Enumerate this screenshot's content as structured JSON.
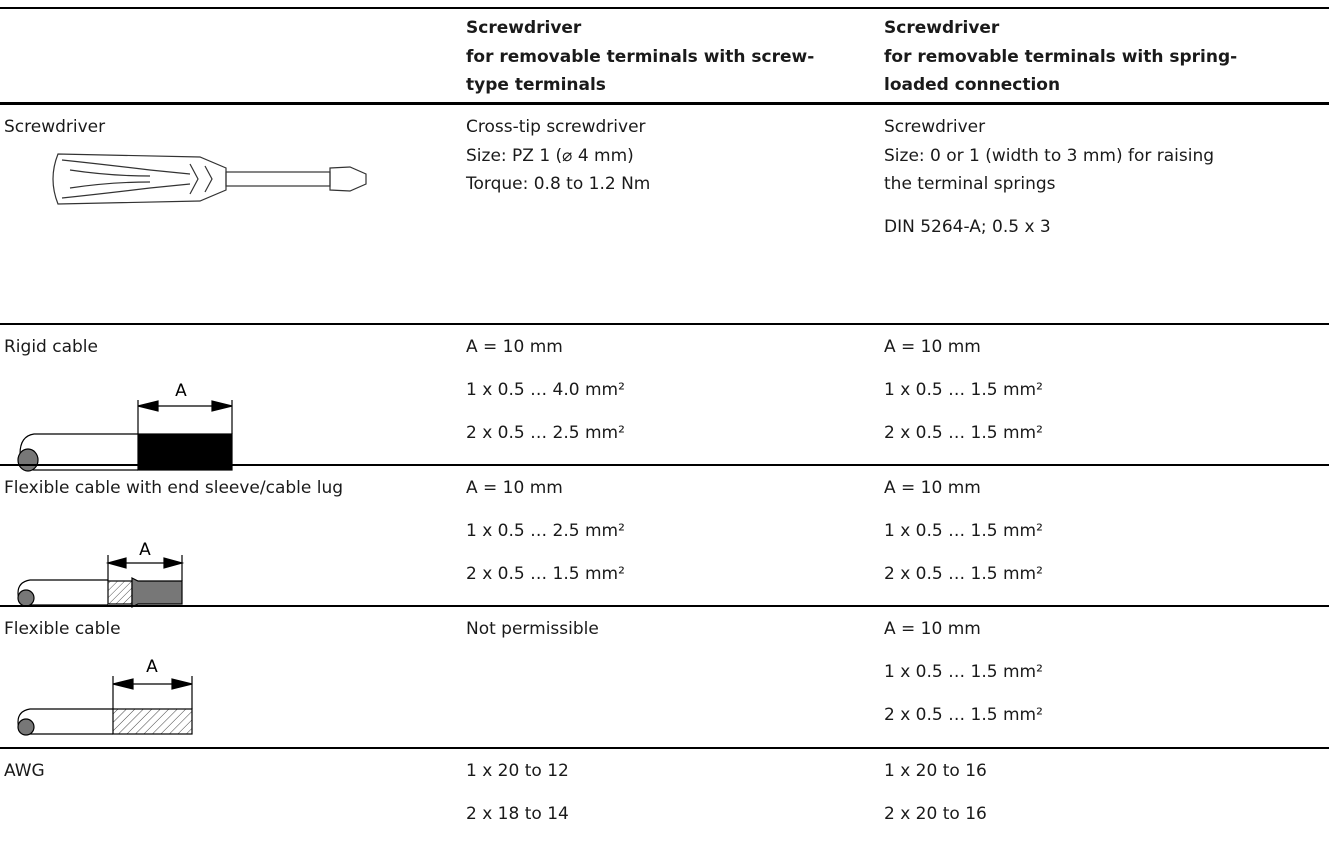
{
  "header": [
    "",
    [
      "Screwdriver",
      "for removable terminals with screw-",
      "type terminals"
    ],
    [
      "Screwdriver",
      "for removable terminals with spring-",
      "loaded connection"
    ]
  ],
  "rows": [
    {
      "label": "Screwdriver",
      "cells": [
        [
          [
            "Cross-tip screwdriver",
            "Size: PZ 1 (⌀ 4 mm)",
            "Torque: 0.8 to 1.2 Nm"
          ]
        ],
        [
          [
            "Screwdriver",
            "Size: 0 or 1 (width to 3 mm) for raising",
            "the terminal springs"
          ],
          [
            "DIN 5264-A; 0.5 x 3"
          ]
        ]
      ]
    },
    {
      "label": "Rigid cable",
      "figure_label": "A",
      "cells": [
        [
          [
            "A = 10 mm"
          ],
          [
            "1 x 0.5 … 4.0 mm²"
          ],
          [
            "2 x 0.5 … 2.5 mm²"
          ]
        ],
        [
          [
            "A = 10 mm"
          ],
          [
            "1 x 0.5 … 1.5 mm²"
          ],
          [
            "2 x 0.5 … 1.5 mm²"
          ]
        ]
      ]
    },
    {
      "label": "Flexible cable with end sleeve/cable lug",
      "figure_label": "A",
      "cells": [
        [
          [
            "A = 10 mm"
          ],
          [
            "1 x 0.5 … 2.5 mm²"
          ],
          [
            "2 x 0.5 … 1.5 mm²"
          ]
        ],
        [
          [
            "A = 10 mm"
          ],
          [
            "1 x 0.5 … 1.5 mm²"
          ],
          [
            "2 x 0.5 … 1.5 mm²"
          ]
        ]
      ]
    },
    {
      "label": "Flexible cable",
      "figure_label": "A",
      "cells": [
        [
          [
            "Not permissible"
          ]
        ],
        [
          [
            "A = 10 mm"
          ],
          [
            "1 x 0.5 … 1.5 mm²"
          ],
          [
            "2 x 0.5 … 1.5 mm²"
          ]
        ]
      ]
    },
    {
      "label": "AWG",
      "cells": [
        [
          [
            "1 x 20 to 12"
          ],
          [
            "2 x 18 to 14"
          ]
        ],
        [
          [
            "1 x 20 to 16"
          ],
          [
            "2 x 20 to 16"
          ]
        ]
      ]
    }
  ]
}
